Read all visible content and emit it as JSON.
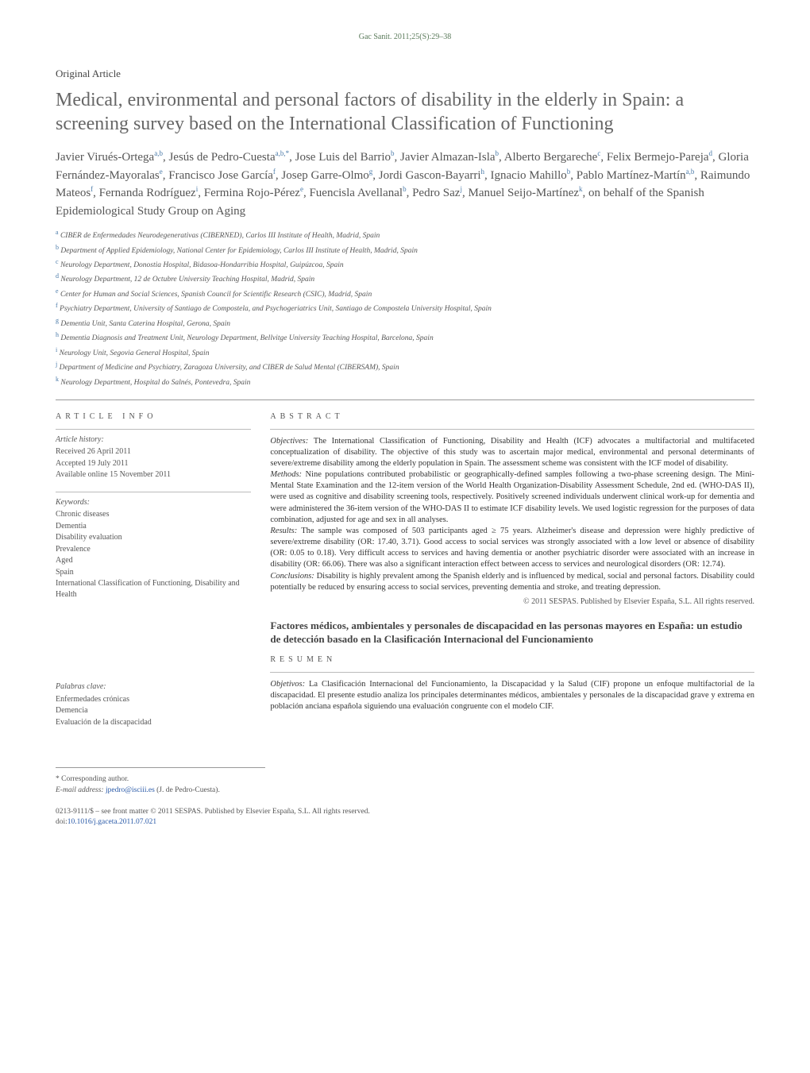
{
  "journal_citation": "Gac Sanit. 2011;25(S):29–38",
  "article_type": "Original Article",
  "title": "Medical, environmental and personal factors of disability in the elderly in Spain: a screening survey based on the International Classification of Functioning",
  "authors_html": "Javier Virués-Ortega<sup>a,b</sup>, Jesús de Pedro-Cuesta<sup>a,b,*</sup>, Jose Luis del Barrio<sup>b</sup>, Javier Almazan-Isla<sup>b</sup>, Alberto Bergareche<sup>c</sup>, Felix Bermejo-Pareja<sup>d</sup>, Gloria Fernández-Mayoralas<sup>e</sup>, Francisco Jose García<sup>f</sup>, Josep Garre-Olmo<sup>g</sup>, Jordi Gascon-Bayarri<sup>h</sup>, Ignacio Mahillo<sup>b</sup>, Pablo Martínez-Martín<sup>a,b</sup>, Raimundo Mateos<sup>f</sup>, Fernanda Rodríguez<sup>i</sup>, Fermina Rojo-Pérez<sup>e</sup>, Fuencisla Avellanal<sup>b</sup>, Pedro Saz<sup>j</sup>, Manuel Seijo-Martínez<sup>k</sup>, on behalf of the Spanish Epidemiological Study Group on Aging",
  "affiliations": [
    {
      "k": "a",
      "t": "CIBER de Enfermedades Neurodegenerativas (CIBERNED), Carlos III Institute of Health, Madrid, Spain"
    },
    {
      "k": "b",
      "t": "Department of Applied Epidemiology, National Center for Epidemiology, Carlos III Institute of Health, Madrid, Spain"
    },
    {
      "k": "c",
      "t": "Neurology Department, Donostia Hospital, Bidasoa-Hondarribia Hospital, Guipúzcoa, Spain"
    },
    {
      "k": "d",
      "t": "Neurology Department, 12 de Octubre University Teaching Hospital, Madrid, Spain"
    },
    {
      "k": "e",
      "t": "Center for Human and Social Sciences, Spanish Council for Scientific Research (CSIC), Madrid, Spain"
    },
    {
      "k": "f",
      "t": "Psychiatry Department, University of Santiago de Compostela, and Psychogeriatrics Unit, Santiago de Compostela University Hospital, Spain"
    },
    {
      "k": "g",
      "t": "Dementia Unit, Santa Caterina Hospital, Gerona, Spain"
    },
    {
      "k": "h",
      "t": "Dementia Diagnosis and Treatment Unit, Neurology Department, Bellvitge University Teaching Hospital, Barcelona, Spain"
    },
    {
      "k": "i",
      "t": "Neurology Unit, Segovia General Hospital, Spain"
    },
    {
      "k": "j",
      "t": "Department of Medicine and Psychiatry, Zaragoza University, and CIBER de Salud Mental (CIBERSAM), Spain"
    },
    {
      "k": "k",
      "t": "Neurology Department, Hospital do Salnés, Pontevedra, Spain"
    }
  ],
  "article_info_heading": "ARTICLE INFO",
  "abstract_heading": "ABSTRACT",
  "history_label": "Article history:",
  "history": [
    "Received 26 April 2011",
    "Accepted 19 July 2011",
    "Available online 15 November 2011"
  ],
  "keywords_label": "Keywords:",
  "keywords": [
    "Chronic diseases",
    "Dementia",
    "Disability evaluation",
    "Prevalence",
    "Aged",
    "Spain",
    "International Classification of Functioning, Disability and Health"
  ],
  "abstract": {
    "objectives_label": "Objectives:",
    "objectives": "The International Classification of Functioning, Disability and Health (ICF) advocates a multifactorial and multifaceted conceptualization of disability. The objective of this study was to ascertain major medical, environmental and personal determinants of severe/extreme disability among the elderly population in Spain. The assessment scheme was consistent with the ICF model of disability.",
    "methods_label": "Methods:",
    "methods": "Nine populations contributed probabilistic or geographically-defined samples following a two-phase screening design. The Mini-Mental State Examination and the 12-item version of the World Health Organization-Disability Assessment Schedule, 2nd ed. (WHO-DAS II), were used as cognitive and disability screening tools, respectively. Positively screened individuals underwent clinical work-up for dementia and were administered the 36-item version of the WHO-DAS II to estimate ICF disability levels. We used logistic regression for the purposes of data combination, adjusted for age and sex in all analyses.",
    "results_label": "Results:",
    "results": "The sample was composed of 503 participants aged ≥ 75 years. Alzheimer's disease and depression were highly predictive of severe/extreme disability (OR: 17.40, 3.71). Good access to social services was strongly associated with a low level or absence of disability (OR: 0.05 to 0.18). Very difficult access to services and having dementia or another psychiatric disorder were associated with an increase in disability (OR: 66.06). There was also a significant interaction effect between access to services and neurological disorders (OR: 12.74).",
    "conclusions_label": "Conclusions:",
    "conclusions": "Disability is highly prevalent among the Spanish elderly and is influenced by medical, social and personal factors. Disability could potentially be reduced by ensuring access to social services, preventing dementia and stroke, and treating depression."
  },
  "copyright": "© 2011 SESPAS. Published by Elsevier España, S.L. All rights reserved.",
  "spanish_title": "Factores médicos, ambientales y personales de discapacidad en las personas mayores en España: un estudio de detección basado en la Clasificación Internacional del Funcionamiento",
  "resumen_heading": "RESUMEN",
  "palabras_label": "Palabras clave:",
  "palabras": [
    "Enfermedades crónicas",
    "Demencia",
    "Evaluación de la discapacidad"
  ],
  "resumen": {
    "objetivos_label": "Objetivos:",
    "objetivos": "La Clasificación Internacional del Funcionamiento, la Discapacidad y la Salud (CIF) propone un enfoque multifactorial de la discapacidad. El presente estudio analiza los principales determinantes médicos, ambientales y personales de la discapacidad grave y extrema en población anciana española siguiendo una evaluación congruente con el modelo CIF."
  },
  "corresponding_label": "* Corresponding author.",
  "email_label": "E-mail address:",
  "email": "jpedro@isciii.es",
  "email_name": "(J. de Pedro-Cuesta).",
  "issn_line": "0213-9111/$ – see front matter © 2011 SESPAS. Published by Elsevier España, S.L. All rights reserved.",
  "doi_label": "doi:",
  "doi": "10.1016/j.gaceta.2011.07.021"
}
